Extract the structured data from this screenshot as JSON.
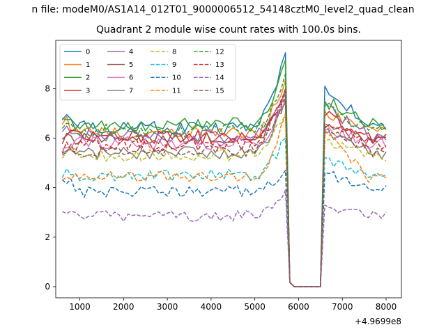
{
  "chart_data": {
    "type": "line",
    "suptitle": "n file: modeM0/AS1A14_012T01_9000006512_54148cztM0_level2_quad_clean",
    "title": "Quadrant 2 module wise count rates with 100.0s bins.",
    "xlabel": "",
    "ylabel": "",
    "offset_text": "+4.9699e8",
    "xlim": [
      450,
      8350
    ],
    "ylim": [
      -0.45,
      9.95
    ],
    "xticks": [
      1000,
      2000,
      3000,
      4000,
      5000,
      6000,
      7000,
      8000
    ],
    "yticks": [
      0,
      2,
      4,
      6,
      8
    ],
    "legend": {
      "placement": "upper-left",
      "columns": 4
    },
    "x": [
      600,
      700,
      800,
      900,
      1000,
      1100,
      1200,
      1300,
      1400,
      1500,
      1600,
      1700,
      1800,
      1900,
      2000,
      2100,
      2200,
      2300,
      2400,
      2500,
      2600,
      2700,
      2800,
      2900,
      3000,
      3100,
      3200,
      3300,
      3400,
      3500,
      3600,
      3700,
      3800,
      3900,
      4000,
      4100,
      4200,
      4300,
      4400,
      4500,
      4600,
      4700,
      4800,
      4900,
      5000,
      5100,
      5200,
      5300,
      5400,
      5500,
      5600,
      5700,
      5800,
      5900,
      6000,
      6100,
      6200,
      6300,
      6400,
      6500,
      6600,
      6700,
      6800,
      6900,
      7000,
      7100,
      7200,
      7300,
      7400,
      7500,
      7600,
      7700,
      7800,
      7900,
      8000
    ],
    "drop": {
      "start_index": 52,
      "end_index": 59,
      "values": [
        0.18,
        0.0,
        0.0,
        0.0,
        0.0,
        0.0,
        0.0,
        0.0
      ]
    },
    "series": [
      {
        "name": "0",
        "color": "#1f77b4",
        "dash": false,
        "level": 6.45,
        "start": 7.0,
        "peak": 9.45,
        "post": 8.1
      },
      {
        "name": "1",
        "color": "#ff7f0e",
        "dash": false,
        "level": 6.2,
        "start": 6.8,
        "peak": 8.35,
        "post": 7.1
      },
      {
        "name": "2",
        "color": "#2ca02c",
        "dash": false,
        "level": 6.55,
        "start": 7.05,
        "peak": 9.15,
        "post": 7.5
      },
      {
        "name": "3",
        "color": "#d62728",
        "dash": false,
        "level": 6.05,
        "start": 6.2,
        "peak": 8.0,
        "post": 6.9
      },
      {
        "name": "4",
        "color": "#9467bd",
        "dash": false,
        "level": 6.1,
        "start": 6.5,
        "peak": 7.8,
        "post": 7.3
      },
      {
        "name": "5",
        "color": "#8c564b",
        "dash": false,
        "level": 5.95,
        "start": 6.0,
        "peak": 7.6,
        "post": 6.4
      },
      {
        "name": "6",
        "color": "#e377c2",
        "dash": false,
        "level": 5.8,
        "start": 5.8,
        "peak": 7.5,
        "post": 6.3
      },
      {
        "name": "7",
        "color": "#7f7f7f",
        "dash": false,
        "level": 5.4,
        "start": 5.6,
        "peak": 7.4,
        "post": 6.2
      },
      {
        "name": "8",
        "color": "#bcbd22",
        "dash": true,
        "level": 5.3,
        "start": 5.4,
        "peak": 7.0,
        "post": 5.9
      },
      {
        "name": "9",
        "color": "#17becf",
        "dash": true,
        "level": 4.5,
        "start": 4.6,
        "peak": 6.0,
        "post": 5.2
      },
      {
        "name": "10",
        "color": "#1f77b4",
        "dash": true,
        "level": 3.85,
        "start": 4.5,
        "peak": 4.7,
        "post": 4.6
      },
      {
        "name": "11",
        "color": "#ff7f0e",
        "dash": true,
        "level": 4.4,
        "start": 4.5,
        "peak": 6.9,
        "post": 6.3
      },
      {
        "name": "12",
        "color": "#2ca02c",
        "dash": true,
        "level": 6.3,
        "start": 6.6,
        "peak": 8.6,
        "post": 7.4
      },
      {
        "name": "13",
        "color": "#d62728",
        "dash": true,
        "level": 5.75,
        "start": 5.6,
        "peak": 7.9,
        "post": 6.6
      },
      {
        "name": "14",
        "color": "#9467bd",
        "dash": true,
        "level": 2.85,
        "start": 3.2,
        "peak": 3.9,
        "post": 3.3
      },
      {
        "name": "15",
        "color": "#8c564b",
        "dash": true,
        "level": 5.5,
        "start": 5.5,
        "peak": 7.7,
        "post": 6.5
      }
    ]
  }
}
